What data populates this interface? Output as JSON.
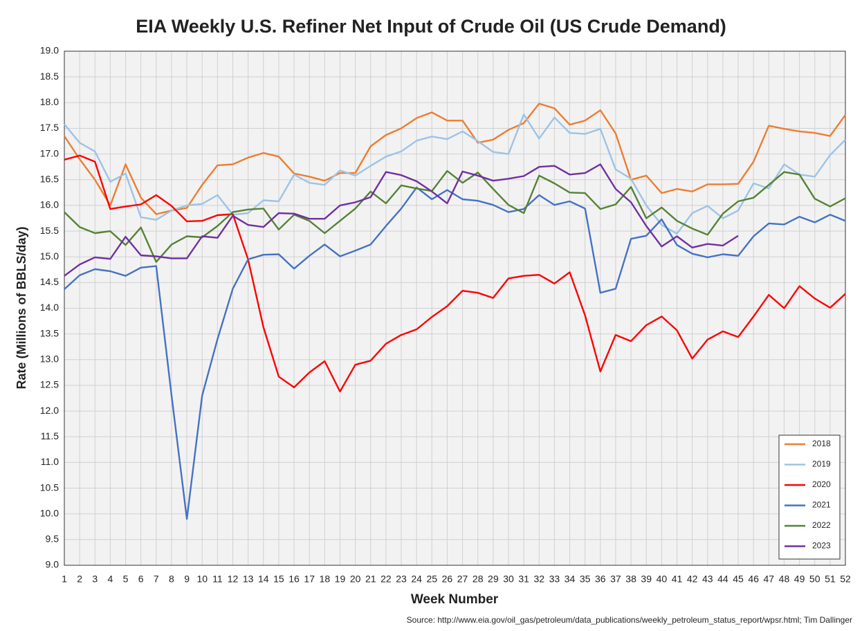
{
  "chart_data": {
    "type": "line",
    "title": "EIA Weekly U.S. Refiner Net Input of Crude Oil (US Crude Demand)",
    "xlabel": "Week Number",
    "ylabel": "Rate (Millions of BBLS/day)",
    "source": "Source: http://www.eia.gov/oil_gas/petroleum/data_publications/weekly_petroleum_status_report/wpsr.html; Tim Dallinger",
    "x": [
      1,
      2,
      3,
      4,
      5,
      6,
      7,
      8,
      9,
      10,
      11,
      12,
      13,
      14,
      15,
      16,
      17,
      18,
      19,
      20,
      21,
      22,
      23,
      24,
      25,
      26,
      27,
      28,
      29,
      30,
      31,
      32,
      33,
      34,
      35,
      36,
      37,
      38,
      39,
      40,
      41,
      42,
      43,
      44,
      45,
      46,
      47,
      48,
      49,
      50,
      51,
      52
    ],
    "xlim": [
      1,
      52
    ],
    "xticks": [
      1,
      2,
      3,
      4,
      5,
      6,
      7,
      8,
      9,
      10,
      11,
      12,
      13,
      14,
      15,
      16,
      17,
      18,
      19,
      20,
      21,
      22,
      23,
      24,
      25,
      26,
      27,
      28,
      29,
      30,
      31,
      32,
      33,
      34,
      35,
      36,
      37,
      38,
      39,
      40,
      41,
      42,
      43,
      44,
      45,
      46,
      47,
      48,
      49,
      50,
      51,
      52
    ],
    "ylim": [
      9,
      19
    ],
    "yticks": [
      {
        "value": 9,
        "label": "9.0"
      },
      9.5,
      {
        "value": 10,
        "label": "10.0"
      },
      10.5,
      {
        "value": 11,
        "label": "11.0"
      },
      11.5,
      {
        "value": 12,
        "label": "12.0"
      },
      12.5,
      {
        "value": 13,
        "label": "13.0"
      },
      13.5,
      {
        "value": 14,
        "label": "14.0"
      },
      14.5,
      {
        "value": 15,
        "label": "15.0"
      },
      15.5,
      {
        "value": 16,
        "label": "16.0"
      },
      16.5,
      {
        "value": 17,
        "label": "17.0"
      },
      17.5,
      {
        "value": 18,
        "label": "18.0"
      },
      18.5,
      {
        "value": 19,
        "label": "19.0"
      }
    ],
    "grid": true,
    "legend": "lower right",
    "series": [
      {
        "name": "2018",
        "color": "#ed7d31",
        "values": [
          17.35,
          16.9,
          16.5,
          16.0,
          16.8,
          16.15,
          15.83,
          15.9,
          15.95,
          16.4,
          16.78,
          16.8,
          16.93,
          17.02,
          16.95,
          16.62,
          16.56,
          16.48,
          16.63,
          16.63,
          17.15,
          17.37,
          17.5,
          17.7,
          17.81,
          17.65,
          17.65,
          17.22,
          17.28,
          17.47,
          17.6,
          17.98,
          17.89,
          17.57,
          17.65,
          17.85,
          17.4,
          16.5,
          16.58,
          16.24,
          16.32,
          16.27,
          16.41,
          16.41,
          16.42,
          16.85,
          17.55,
          17.49,
          17.44,
          17.41,
          17.35,
          17.76
        ]
      },
      {
        "name": "2019",
        "color": "#9dc3e6",
        "values": [
          17.58,
          17.22,
          17.05,
          16.46,
          16.62,
          15.77,
          15.72,
          15.9,
          16.0,
          16.03,
          16.2,
          15.82,
          15.85,
          16.1,
          16.08,
          16.6,
          16.44,
          16.4,
          16.68,
          16.58,
          16.77,
          16.95,
          17.05,
          17.26,
          17.34,
          17.29,
          17.44,
          17.25,
          17.04,
          17.0,
          17.77,
          17.3,
          17.71,
          17.41,
          17.39,
          17.49,
          16.7,
          16.52,
          16.0,
          15.62,
          15.45,
          15.85,
          15.99,
          15.75,
          15.9,
          16.43,
          16.33,
          16.8,
          16.6,
          16.56,
          16.98,
          17.28
        ]
      },
      {
        "name": "2020",
        "color": "#ff0000",
        "values": [
          16.89,
          16.97,
          16.85,
          15.93,
          15.98,
          16.02,
          16.2,
          15.99,
          15.69,
          15.7,
          15.81,
          15.83,
          14.95,
          13.63,
          12.67,
          12.46,
          12.75,
          12.97,
          12.38,
          12.9,
          12.98,
          13.31,
          13.48,
          13.59,
          13.83,
          14.04,
          14.34,
          14.3,
          14.2,
          14.58,
          14.63,
          14.65,
          14.48,
          14.7,
          13.86,
          12.77,
          13.48,
          13.36,
          13.67,
          13.84,
          13.57,
          13.02,
          13.39,
          13.55,
          13.44,
          13.84,
          14.26,
          14.0,
          14.43,
          14.19,
          14.01,
          14.28
        ]
      },
      {
        "name": "2021",
        "color": "#4472c4",
        "values": [
          14.37,
          14.64,
          14.76,
          14.72,
          14.63,
          14.79,
          14.82,
          12.3,
          9.9,
          12.3,
          13.4,
          14.38,
          14.95,
          15.04,
          15.05,
          14.77,
          15.02,
          15.24,
          15.01,
          15.12,
          15.24,
          15.6,
          15.94,
          16.35,
          16.12,
          16.3,
          16.12,
          16.09,
          16.01,
          15.87,
          15.93,
          16.2,
          16.01,
          16.08,
          15.94,
          14.3,
          14.38,
          15.35,
          15.41,
          15.73,
          15.23,
          15.06,
          14.99,
          15.05,
          15.02,
          15.4,
          15.65,
          15.63,
          15.78,
          15.67,
          15.82,
          15.7
        ]
      },
      {
        "name": "2022",
        "color": "#548235",
        "values": [
          15.87,
          15.58,
          15.46,
          15.5,
          15.23,
          15.57,
          14.9,
          15.24,
          15.4,
          15.38,
          15.6,
          15.87,
          15.92,
          15.94,
          15.53,
          15.82,
          15.7,
          15.46,
          15.7,
          15.94,
          16.27,
          16.04,
          16.39,
          16.33,
          16.28,
          16.67,
          16.44,
          16.64,
          16.32,
          16.01,
          15.85,
          16.58,
          16.43,
          16.25,
          16.24,
          15.93,
          16.02,
          16.36,
          15.75,
          15.96,
          15.7,
          15.55,
          15.43,
          15.84,
          16.08,
          16.15,
          16.4,
          16.65,
          16.6,
          16.13,
          15.98,
          16.14
        ]
      },
      {
        "name": "2023",
        "color": "#7030a0",
        "values": [
          14.63,
          14.85,
          14.99,
          14.96,
          15.39,
          15.03,
          15.01,
          14.97,
          14.97,
          15.4,
          15.37,
          15.8,
          15.62,
          15.58,
          15.85,
          15.84,
          15.74,
          15.74,
          16.0,
          16.06,
          16.16,
          16.65,
          16.59,
          16.47,
          16.27,
          16.04,
          16.66,
          16.58,
          16.48,
          16.52,
          16.57,
          16.75,
          16.77,
          16.6,
          16.63,
          16.8,
          16.32,
          16.06,
          15.6,
          15.2,
          15.4,
          15.18,
          15.25,
          15.22,
          15.41,
          null,
          null,
          null,
          null,
          null,
          null,
          null
        ]
      }
    ]
  }
}
